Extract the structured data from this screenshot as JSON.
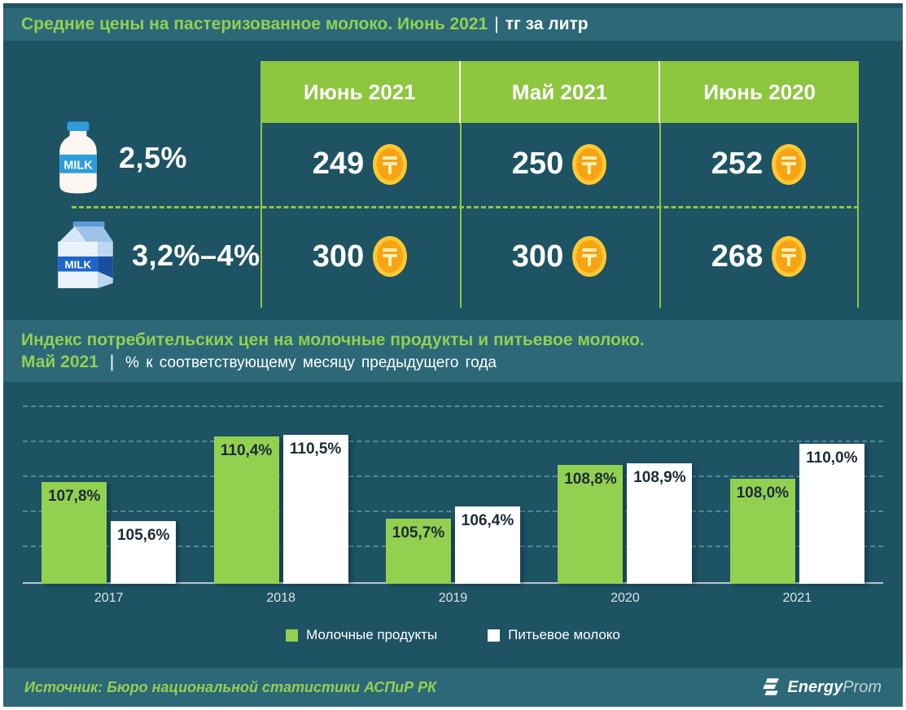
{
  "colors": {
    "background": "#1e5364",
    "band": "#2c6878",
    "accent_green": "#92d050",
    "table_header_green": "#8dc63f",
    "bar_green": "#92d050",
    "bar_white": "#ffffff",
    "coin_gold": "#ffc933",
    "bar_label_dark": "#1c2b36"
  },
  "header": {
    "title": "Средние цены на пастеризованное молоко. Июнь 2021",
    "divider": "|",
    "unit": "тг за литр"
  },
  "section2": {
    "title": "Индекс потребительских цен на молочные продукты и питьевое молоко.",
    "highlight": "Май 2021",
    "divider": "|",
    "subtitle": "% к соответствующему месяцу предыдущего года"
  },
  "icons": {
    "row0": "milk-bottle-icon",
    "row1": "milk-carton-icon",
    "value": "tenge-coin-icon",
    "logo": "energyprom-logo-icon"
  },
  "chart_data": [
    {
      "type": "table",
      "title": "Средние цены на пастеризованное молоко. Июнь 2021",
      "unit": "тг за литр",
      "columns": [
        "Июнь 2021",
        "Май 2021",
        "Июнь 2020"
      ],
      "rows": [
        {
          "icon": "milk-bottle-icon",
          "label": "2,5%",
          "values": [
            249,
            250,
            252
          ]
        },
        {
          "icon": "milk-carton-icon",
          "label": "3,2%–4%",
          "values": [
            300,
            300,
            268
          ]
        }
      ],
      "value_icon": "tenge-coin-icon"
    },
    {
      "type": "bar",
      "title": "Индекс потребительских цен на молочные продукты и питьевое молоко. Май 2021",
      "subtitle": "% к соответствующему месяцу предыдущего года",
      "categories": [
        "2017",
        "2018",
        "2019",
        "2020",
        "2021"
      ],
      "series": [
        {
          "name": "Молочные продукты",
          "color": "#92d050",
          "values": [
            107.8,
            110.4,
            105.7,
            108.8,
            108.0
          ]
        },
        {
          "name": "Питьевое молоко",
          "color": "#ffffff",
          "values": [
            105.6,
            110.5,
            106.4,
            108.9,
            110.0
          ]
        }
      ],
      "value_format": "percent-comma",
      "ylim": [
        102,
        113.5
      ],
      "gridlines": [
        104,
        106,
        108,
        110,
        112
      ],
      "grid": "dashed-horizontal",
      "legend_position": "bottom"
    }
  ],
  "legend": {
    "items": [
      {
        "label": "Молочные продукты",
        "color": "#92d050"
      },
      {
        "label": "Питьевое молоко",
        "color": "#ffffff"
      }
    ]
  },
  "footer": {
    "source": "Источник: Бюро национальной статистики АСПиР РК",
    "logo_bold": "Energy",
    "logo_light": "Prom"
  }
}
